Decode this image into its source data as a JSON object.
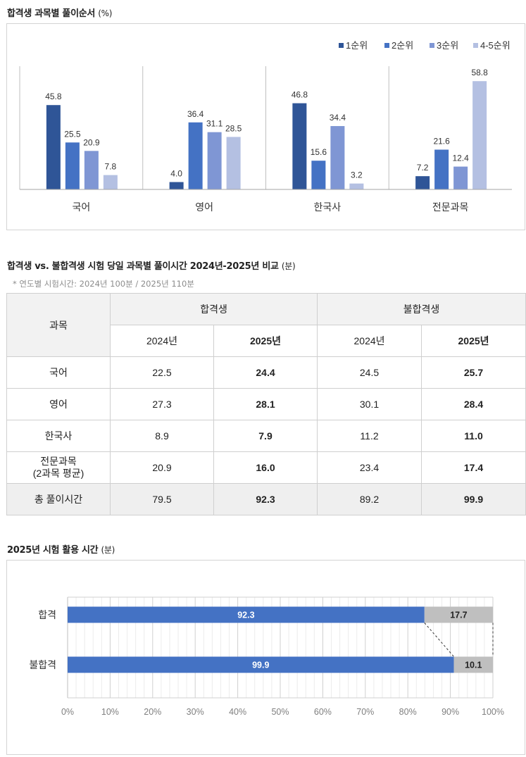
{
  "section1": {
    "title": "합격생 과목별 풀이순서",
    "unit": "(%)"
  },
  "chart1": {
    "type": "bar",
    "categories": [
      "국어",
      "영어",
      "한국사",
      "전문과목"
    ],
    "series": [
      {
        "name": "1순위",
        "color": "#2f5597",
        "values": [
          45.8,
          4.0,
          46.8,
          7.2
        ]
      },
      {
        "name": "2순위",
        "color": "#4472c4",
        "values": [
          25.5,
          36.4,
          15.6,
          21.6
        ]
      },
      {
        "name": "3순위",
        "color": "#7f96d4",
        "values": [
          20.9,
          31.1,
          34.4,
          12.4
        ]
      },
      {
        "name": "4-5순위",
        "color": "#b4c0e2",
        "values": [
          7.8,
          28.5,
          3.2,
          58.8
        ]
      }
    ],
    "ylim": [
      0,
      65
    ],
    "legend": "top-right"
  },
  "section2": {
    "title": "합격생 vs. 불합격생 시험 당일 과목별 풀이시간 2024년-2025년 비교",
    "unit": "(분)",
    "note": "* 연도별 시험시간: 2024년 100분 / 2025년 110분"
  },
  "table": {
    "subject_header": "과목",
    "groups": [
      "합격생",
      "불합격생"
    ],
    "years": [
      "2024년",
      "2025년",
      "2024년",
      "2025년"
    ],
    "rows": [
      {
        "label": "국어",
        "values": [
          "22.5",
          "24.4",
          "24.5",
          "25.7"
        ]
      },
      {
        "label": "영어",
        "values": [
          "27.3",
          "28.1",
          "30.1",
          "28.4"
        ]
      },
      {
        "label": "한국사",
        "values": [
          "8.9",
          "7.9",
          "11.2",
          "11.0"
        ]
      },
      {
        "label": "전문과목",
        "label2": "(2과목 평균)",
        "values": [
          "20.9",
          "16.0",
          "23.4",
          "17.4"
        ]
      },
      {
        "label": "총 풀이시간",
        "values": [
          "79.5",
          "92.3",
          "89.2",
          "99.9"
        ]
      }
    ]
  },
  "section3": {
    "title": "2025년 시험 활용 시간",
    "unit": "(분)"
  },
  "chart2": {
    "type": "bar",
    "orientation": "horizontal",
    "stacked": true,
    "categories": [
      "합격",
      "불합격"
    ],
    "series": [
      {
        "values": [
          92.3,
          99.9
        ],
        "color": "#4472c4"
      },
      {
        "values": [
          17.7,
          10.1
        ],
        "color": "#bfbfbf"
      }
    ],
    "xticks": [
      "0%",
      "10%",
      "20%",
      "30%",
      "40%",
      "50%",
      "60%",
      "70%",
      "80%",
      "90%",
      "100%"
    ],
    "xlim": [
      0,
      110
    ]
  }
}
